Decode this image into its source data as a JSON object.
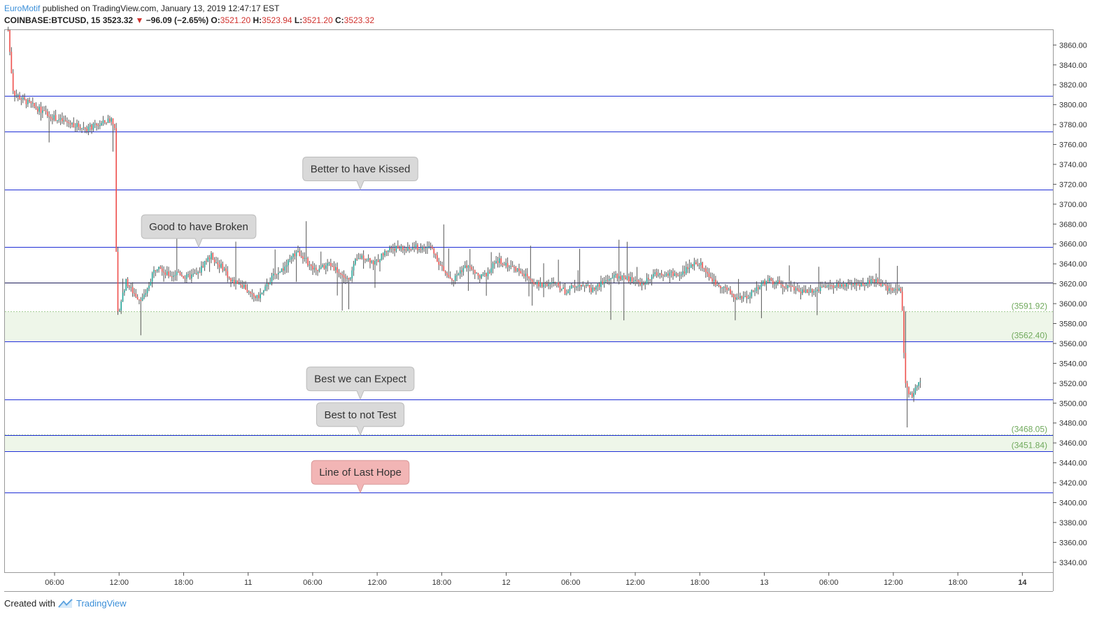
{
  "header": {
    "author": "EuroMotif",
    "published": " published on TradingView.com, January 13, 2019 12:47:17 EST",
    "symbol": "COINBASE:BTCUSD, 15",
    "last": "3523.32",
    "change": "−96.09 (−2.65%)",
    "open_label": "O:",
    "open": "3521.20",
    "high_label": "H:",
    "high": "3523.94",
    "low_label": "L:",
    "low": "3521.20",
    "close_label": "C:",
    "close": "3523.32"
  },
  "footer": {
    "created_with": "Created with",
    "brand": "TradingView"
  },
  "colors": {
    "up": "#26a69a",
    "down": "#ef5350",
    "level_line": "#1f2fd6",
    "zone_fill": "#eef6e9",
    "zone_text": "#6fa95b",
    "callout_grey": "#d9d9d9",
    "callout_red": "#f2b5b5"
  },
  "chart_data": {
    "type": "candlestick",
    "symbol": "COINBASE:BTCUSD",
    "timeframe": "15",
    "ylim": [
      3330,
      3875
    ],
    "y_ticks": [
      3340,
      3360,
      3380,
      3400,
      3420,
      3440,
      3460,
      3480,
      3500,
      3520,
      3540,
      3560,
      3580,
      3600,
      3620,
      3640,
      3660,
      3680,
      3700,
      3720,
      3740,
      3760,
      3780,
      3800,
      3820,
      3840,
      3860
    ],
    "x_ticks": [
      "06:00",
      "12:00",
      "18:00",
      "11",
      "06:00",
      "12:00",
      "18:00",
      "12",
      "06:00",
      "12:00",
      "18:00",
      "13",
      "06:00",
      "12:00",
      "18:00",
      "14"
    ],
    "horizontal_levels": [
      3809,
      3773,
      3715,
      3657,
      3621,
      3562.4,
      3504,
      3468.05,
      3451.84,
      3410
    ],
    "zones": [
      {
        "top": 3591.92,
        "bottom": 3562.4,
        "top_label": "(3591.92)",
        "bottom_label": "(3562.40)"
      },
      {
        "top": 3468.05,
        "bottom": 3451.84,
        "top_label": "(3468.05)",
        "bottom_label": "(3451.84)"
      }
    ],
    "callouts": [
      {
        "text": "Better to have Kissed",
        "points_to": 3715,
        "style": "grey"
      },
      {
        "text": "Good to have Broken",
        "points_to": 3657,
        "style": "grey"
      },
      {
        "text": "Best we can Expect",
        "points_to": 3504,
        "style": "grey"
      },
      {
        "text": "Best to not Test",
        "points_to": 3468,
        "style": "grey"
      },
      {
        "text": "Line of Last Hope",
        "points_to": 3410,
        "style": "red"
      }
    ],
    "price_path": [
      [
        0,
        3875
      ],
      [
        0.4,
        3840
      ],
      [
        0.8,
        3812
      ],
      [
        2,
        3806
      ],
      [
        4,
        3798
      ],
      [
        6,
        3790
      ],
      [
        8,
        3784
      ],
      [
        10,
        3780
      ],
      [
        12,
        3776
      ],
      [
        14,
        3780
      ],
      [
        15.8,
        3786
      ],
      [
        16.3,
        3778
      ],
      [
        16.6,
        3585
      ],
      [
        17.5,
        3610
      ],
      [
        18,
        3622
      ],
      [
        19,
        3612
      ],
      [
        20,
        3605
      ],
      [
        21,
        3608
      ],
      [
        22,
        3630
      ],
      [
        23,
        3640
      ],
      [
        24,
        3630
      ],
      [
        25,
        3628
      ],
      [
        26,
        3632
      ],
      [
        27,
        3626
      ],
      [
        28,
        3628
      ],
      [
        29,
        3630
      ],
      [
        30,
        3642
      ],
      [
        31,
        3648
      ],
      [
        32,
        3640
      ],
      [
        33,
        3635
      ],
      [
        34,
        3622
      ],
      [
        35,
        3622
      ],
      [
        36,
        3618
      ],
      [
        37,
        3608
      ],
      [
        38,
        3606
      ],
      [
        39,
        3612
      ],
      [
        40,
        3624
      ],
      [
        41,
        3632
      ],
      [
        42,
        3635
      ],
      [
        43,
        3643
      ],
      [
        44,
        3652
      ],
      [
        45,
        3648
      ],
      [
        46,
        3638
      ],
      [
        47,
        3632
      ],
      [
        48,
        3636
      ],
      [
        49,
        3640
      ],
      [
        50,
        3635
      ],
      [
        51,
        3628
      ],
      [
        52,
        3623
      ],
      [
        53,
        3642
      ],
      [
        54,
        3648
      ],
      [
        55,
        3645
      ],
      [
        56,
        3640
      ],
      [
        57,
        3648
      ],
      [
        58,
        3655
      ],
      [
        59,
        3656
      ],
      [
        60,
        3655
      ],
      [
        61,
        3654
      ],
      [
        62,
        3657
      ],
      [
        63,
        3655
      ],
      [
        64.5,
        3657
      ],
      [
        65,
        3652
      ],
      [
        66,
        3638
      ],
      [
        67,
        3628
      ],
      [
        68,
        3624
      ],
      [
        69,
        3633
      ],
      [
        70,
        3638
      ],
      [
        71,
        3632
      ],
      [
        72,
        3626
      ],
      [
        73,
        3630
      ],
      [
        74,
        3638
      ],
      [
        75,
        3643
      ],
      [
        76,
        3640
      ],
      [
        77,
        3636
      ],
      [
        78,
        3634
      ],
      [
        79,
        3628
      ],
      [
        80,
        3623
      ],
      [
        81,
        3618
      ],
      [
        82,
        3620
      ],
      [
        83,
        3621
      ],
      [
        84,
        3618
      ],
      [
        85,
        3612
      ],
      [
        86,
        3616
      ],
      [
        87,
        3620
      ],
      [
        88,
        3619
      ],
      [
        89,
        3614
      ],
      [
        90,
        3618
      ],
      [
        91,
        3622
      ],
      [
        92,
        3626
      ],
      [
        93,
        3628
      ],
      [
        94,
        3626
      ],
      [
        95,
        3624
      ],
      [
        96,
        3622
      ],
      [
        97,
        3620
      ],
      [
        98,
        3626
      ],
      [
        99,
        3630
      ],
      [
        100,
        3631
      ],
      [
        101,
        3630
      ],
      [
        102,
        3629
      ],
      [
        103,
        3632
      ],
      [
        104,
        3636
      ],
      [
        105,
        3642
      ],
      [
        106,
        3638
      ],
      [
        107,
        3628
      ],
      [
        108,
        3620
      ],
      [
        109,
        3618
      ],
      [
        110,
        3612
      ],
      [
        111,
        3606
      ],
      [
        112,
        3605
      ],
      [
        113,
        3608
      ],
      [
        114,
        3614
      ],
      [
        115,
        3620
      ],
      [
        116,
        3623
      ],
      [
        117,
        3622
      ],
      [
        118,
        3620
      ],
      [
        119,
        3618
      ],
      [
        120,
        3614
      ],
      [
        121,
        3613
      ],
      [
        122,
        3613
      ],
      [
        123,
        3614
      ],
      [
        124,
        3615
      ],
      [
        125,
        3616
      ],
      [
        126,
        3617
      ],
      [
        127,
        3619
      ],
      [
        128,
        3618
      ],
      [
        129,
        3617
      ],
      [
        130,
        3620
      ],
      [
        131,
        3621
      ],
      [
        132,
        3624
      ],
      [
        133,
        3620
      ],
      [
        134,
        3616
      ],
      [
        135,
        3615
      ],
      [
        136.4,
        3614
      ],
      [
        136.9,
        3520
      ],
      [
        137.5,
        3512
      ],
      [
        138,
        3508
      ],
      [
        138.8,
        3516
      ],
      [
        139.4,
        3523
      ]
    ],
    "n_slots": 160
  }
}
